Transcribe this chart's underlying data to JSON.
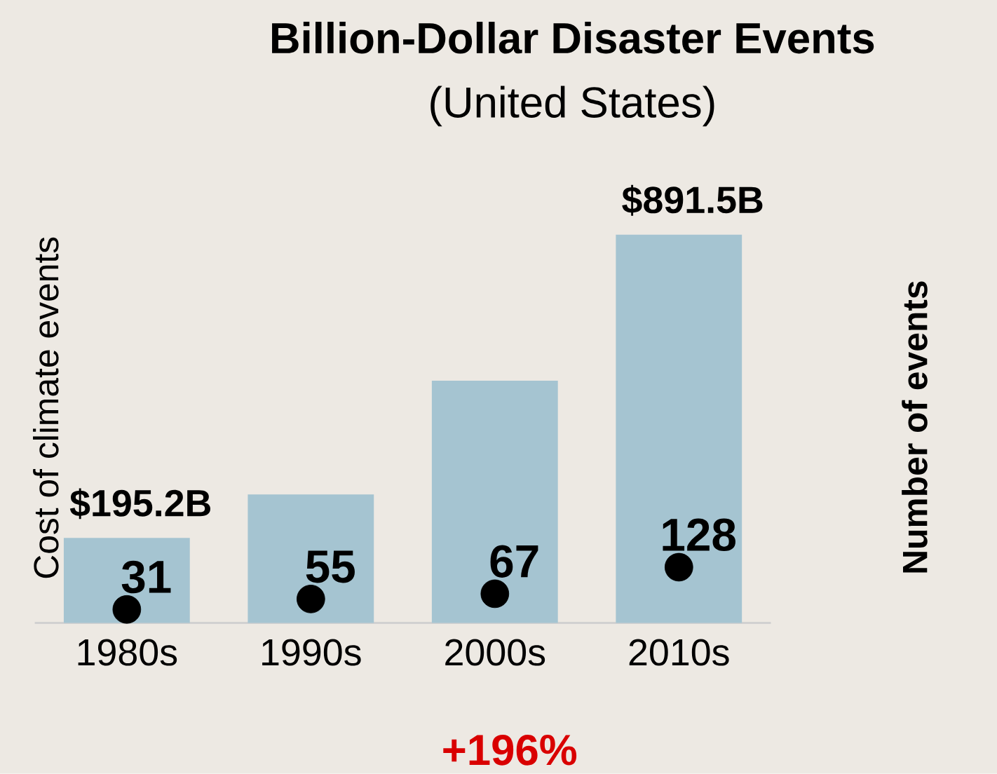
{
  "chart_data": {
    "type": "bar",
    "title": "Billion-Dollar Disaster Events",
    "subtitle": "(United States)",
    "ylabel": "Cost of  climate events",
    "y2label": "Number of events",
    "categories": [
      "1980s",
      "1990s",
      "2000s",
      "2010s"
    ],
    "series": [
      {
        "color": "#a5c4d1",
        "values": [
          195.2,
          295,
          556,
          891.5
        ],
        "value_labels": [
          "$195.2B",
          null,
          null,
          "$891.5B"
        ]
      },
      {
        "type": "scatter",
        "axis": "y2",
        "color": "#000000",
        "values": [
          31,
          55,
          67,
          128
        ],
        "value_labels": [
          "31",
          "55",
          "67",
          "128"
        ]
      }
    ],
    "tick_labels": "x",
    "marker": "circle",
    "annotations": [
      "+196%"
    ]
  }
}
